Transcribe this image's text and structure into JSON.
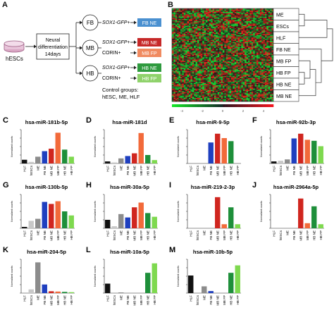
{
  "panels": {
    "A": {
      "letter": "A",
      "source": "hESCs",
      "differentiation": [
        "Neural",
        "differentiation",
        "14days"
      ],
      "branches": [
        {
          "node": "FB",
          "markers": [
            "SOX1-GFP+"
          ],
          "outputs": [
            "FB NE"
          ],
          "output_colors": [
            "#3a86c8"
          ]
        },
        {
          "node": "MB",
          "markers": [
            "SOX1-GFP+",
            "CORIN+"
          ],
          "outputs": [
            "MB NE",
            "MB FP"
          ],
          "output_colors": [
            "#c62828",
            "#f08060"
          ]
        },
        {
          "node": "HB",
          "markers": [
            "SOX1-GFP+",
            "CORIN+"
          ],
          "outputs": [
            "HB NE",
            "HB FP"
          ],
          "output_colors": [
            "#2e9a3e",
            "#8fd26b"
          ]
        }
      ],
      "controls": [
        "Control groups:",
        "hESC, ME, HLF"
      ]
    },
    "B": {
      "letter": "B",
      "row_labels": [
        "ME",
        "ESCs",
        "HLF",
        "FB NE",
        "MB FP",
        "HB FP",
        "HB NE",
        "MB NE"
      ],
      "colorbar_ticks": [
        "-4",
        "-2",
        "0",
        "2",
        "4"
      ]
    }
  },
  "chart_data": [
    {
      "letter": "C",
      "type": "bar",
      "title": "hsa-miR-181b-5p",
      "ylabel": "Normalized counts",
      "categories": [
        "HLF",
        "hESCs",
        "ME",
        "FB NE",
        "MB NE",
        "MB FP",
        "HB NE",
        "HB FP"
      ],
      "values": [
        12,
        5,
        22,
        40,
        48,
        100,
        45,
        22
      ],
      "ylim": [
        0,
        110
      ]
    },
    {
      "letter": "D",
      "type": "bar",
      "title": "hsa-miR-181d",
      "ylabel": "Normalized counts",
      "categories": [
        "HLF",
        "hESCs",
        "ME",
        "FB NE",
        "MB NE",
        "MB FP",
        "HB NE",
        "HB FP"
      ],
      "values": [
        6,
        3,
        15,
        22,
        30,
        90,
        25,
        10
      ],
      "ylim": [
        0,
        100
      ]
    },
    {
      "letter": "E",
      "type": "bar",
      "title": "hsa-miR-9-5p",
      "ylabel": "Normalized counts",
      "categories": [
        "HLF",
        "hESCs",
        "ME",
        "FB NE",
        "MB NE",
        "MB FP",
        "HB NE",
        "HB FP"
      ],
      "values": [
        0,
        0,
        0,
        62,
        88,
        75,
        66,
        0
      ],
      "ylim": [
        0,
        100
      ]
    },
    {
      "letter": "F",
      "type": "bar",
      "title": "hsa-miR-92b-3p",
      "ylabel": "Normalized counts",
      "categories": [
        "HLF",
        "hESCs",
        "ME",
        "FB NE",
        "MB NE",
        "MB FP",
        "HB NE",
        "HB FP"
      ],
      "values": [
        6,
        8,
        12,
        74,
        88,
        70,
        67,
        51
      ],
      "ylim": [
        0,
        100
      ]
    },
    {
      "letter": "G",
      "type": "bar",
      "title": "hsa-miR-130b-5p",
      "ylabel": "Normalized counts",
      "categories": [
        "HLF",
        "hESCs",
        "ME",
        "FB NE",
        "MB NE",
        "MB FP",
        "HB NE",
        "HB FP"
      ],
      "values": [
        4,
        22,
        28,
        78,
        72,
        80,
        50,
        38
      ],
      "ylim": [
        0,
        100
      ]
    },
    {
      "letter": "H",
      "type": "bar",
      "title": "hsa-miR-30a-5p",
      "ylabel": "Normalized counts",
      "categories": [
        "HLF",
        "hESCs",
        "ME",
        "FB NE",
        "MB NE",
        "MB FP",
        "HB NE",
        "HB FP"
      ],
      "values": [
        25,
        6,
        42,
        32,
        62,
        76,
        45,
        34
      ],
      "ylim": [
        0,
        100
      ]
    },
    {
      "letter": "I",
      "type": "bar",
      "title": "hsa-miR-219-2-3p",
      "ylabel": "Normalized counts",
      "categories": [
        "HLF",
        "hESCs",
        "ME",
        "FB NE",
        "MB NE",
        "MB FP",
        "HB NE",
        "HB FP"
      ],
      "values": [
        0,
        0,
        0,
        0,
        92,
        12,
        62,
        12
      ],
      "ylim": [
        0,
        100
      ]
    },
    {
      "letter": "J",
      "type": "bar",
      "title": "hsa-miR-2964a-5p",
      "ylabel": "Normalized counts",
      "categories": [
        "HLF",
        "hESCs",
        "ME",
        "FB NE",
        "MB NE",
        "MB FP",
        "HB NE",
        "HB FP"
      ],
      "values": [
        0,
        0,
        0,
        0,
        88,
        15,
        65,
        12
      ],
      "ylim": [
        0,
        100
      ]
    },
    {
      "letter": "K",
      "type": "bar",
      "title": "hsa-miR-204-5p",
      "ylabel": "Normalized counts",
      "categories": [
        "HLF",
        "hESCs",
        "ME",
        "FB NE",
        "MB NE",
        "MB FP",
        "HB NE",
        "HB FP"
      ],
      "values": [
        0,
        12,
        100,
        28,
        6,
        5,
        4,
        3
      ],
      "ylim": [
        0,
        110
      ]
    },
    {
      "letter": "L",
      "type": "bar",
      "title": "hsa-miR-10a-5p",
      "ylabel": "Normalized counts",
      "categories": [
        "HLF",
        "hESCs",
        "ME",
        "FB NE",
        "MB NE",
        "MB FP",
        "HB NE",
        "HB FP"
      ],
      "values": [
        28,
        0,
        2,
        0,
        0,
        0,
        60,
        88
      ],
      "ylim": [
        0,
        100
      ]
    },
    {
      "letter": "M",
      "type": "bar",
      "title": "hsa-miR-10b-5p",
      "ylabel": "Normalized counts",
      "categories": [
        "HLF",
        "hESCs",
        "ME",
        "FB NE",
        "MB NE",
        "MB FP",
        "HB NE",
        "HB FP"
      ],
      "values": [
        52,
        0,
        20,
        6,
        0,
        0,
        60,
        82
      ],
      "ylim": [
        0,
        100
      ]
    }
  ],
  "bar_colors": [
    "#111111",
    "#c8c8c8",
    "#8c8c8c",
    "#1f3fbf",
    "#d0261f",
    "#f26a3a",
    "#1e8f3a",
    "#7ed94f"
  ]
}
